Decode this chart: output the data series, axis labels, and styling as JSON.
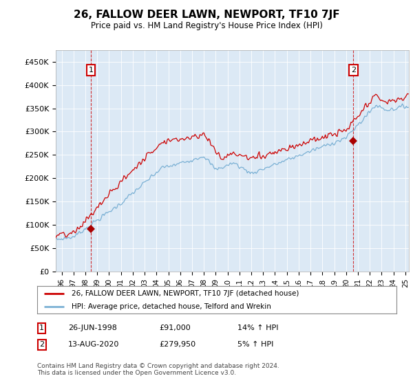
{
  "title": "26, FALLOW DEER LAWN, NEWPORT, TF10 7JF",
  "subtitle": "Price paid vs. HM Land Registry's House Price Index (HPI)",
  "ylim": [
    0,
    475000
  ],
  "yticks": [
    0,
    50000,
    100000,
    150000,
    200000,
    250000,
    300000,
    350000,
    400000,
    450000
  ],
  "sale1_date": "26-JUN-1998",
  "sale1_price": 91000,
  "sale1_hpi": "14% ↑ HPI",
  "sale1_year": 1998.46,
  "sale2_date": "13-AUG-2020",
  "sale2_price": 279950,
  "sale2_hpi": "5% ↑ HPI",
  "sale2_year": 2020.62,
  "legend_line1": "26, FALLOW DEER LAWN, NEWPORT, TF10 7JF (detached house)",
  "legend_line2": "HPI: Average price, detached house, Telford and Wrekin",
  "footer": "Contains HM Land Registry data © Crown copyright and database right 2024.\nThis data is licensed under the Open Government Licence v3.0.",
  "sale_color": "#cc0000",
  "hpi_color": "#7ab0d4",
  "marker_color": "#aa0000",
  "background_color": "#ffffff",
  "plot_bg_color": "#dce9f5",
  "grid_color": "#ffffff",
  "dashed_line_color": "#cc0000",
  "xmin": 1995.5,
  "xmax": 2025.3
}
